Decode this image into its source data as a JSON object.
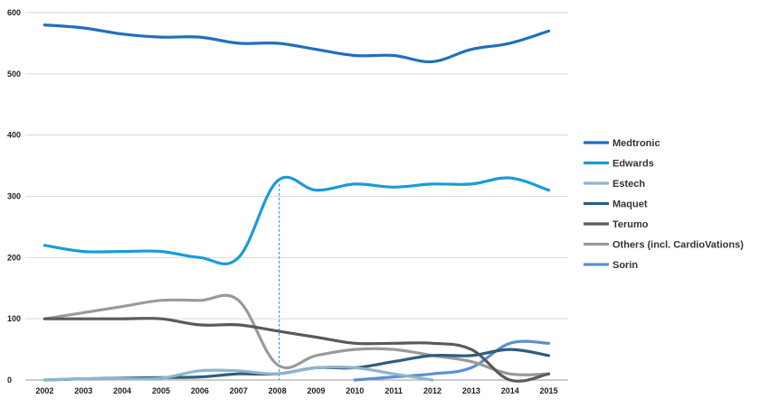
{
  "chart_data": {
    "type": "line",
    "x": [
      "2002",
      "2003",
      "2004",
      "2005",
      "2006",
      "2007",
      "2008",
      "2009",
      "2010",
      "2011",
      "2012",
      "2013",
      "2014",
      "2015"
    ],
    "ylim": [
      0,
      600
    ],
    "yticks": [
      "0",
      "100",
      "200",
      "300",
      "400",
      "500",
      "600"
    ],
    "grid": true,
    "legend_position": "right",
    "series": [
      {
        "name": "Medtronic",
        "color": "#1f6fbf",
        "values": [
          580,
          575,
          565,
          560,
          560,
          550,
          550,
          540,
          530,
          530,
          520,
          540,
          550,
          570
        ]
      },
      {
        "name": "Edwards",
        "color": "#1a9bd7",
        "values": [
          220,
          210,
          210,
          210,
          200,
          200,
          325,
          310,
          320,
          315,
          320,
          320,
          330,
          310
        ]
      },
      {
        "name": "Estech",
        "color": "#8fb5cc",
        "values": [
          0,
          2,
          2,
          3,
          15,
          15,
          10,
          20,
          20,
          10,
          0,
          null,
          null,
          null
        ]
      },
      {
        "name": "Maquet",
        "color": "#2e5e7e",
        "values": [
          0,
          2,
          3,
          4,
          5,
          10,
          10,
          20,
          20,
          30,
          40,
          40,
          50,
          40
        ]
      },
      {
        "name": "Terumo",
        "color": "#5a5a5a",
        "values": [
          100,
          100,
          100,
          100,
          90,
          90,
          80,
          70,
          60,
          60,
          60,
          50,
          0,
          10
        ]
      },
      {
        "name": "Others (incl. CardioVations)",
        "color": "#9a9a9a",
        "values": [
          100,
          110,
          120,
          130,
          130,
          130,
          25,
          40,
          50,
          50,
          40,
          30,
          10,
          10
        ]
      },
      {
        "name": "Sorin",
        "color": "#5b8fd4",
        "values": [
          null,
          null,
          null,
          null,
          null,
          null,
          null,
          null,
          0,
          5,
          10,
          20,
          60,
          60
        ]
      }
    ],
    "annotations": [
      {
        "type": "dashed-vertical-line",
        "x": "2008",
        "y_from": 0,
        "y_to": 320,
        "color": "#1a9bd7"
      }
    ]
  }
}
